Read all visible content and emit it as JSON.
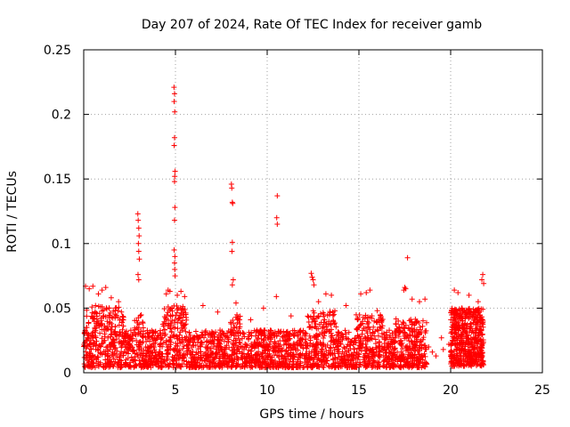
{
  "chart_data": {
    "type": "scatter",
    "title": "Day 207 of 2024, Rate Of TEC Index for receiver gamb",
    "xlabel": "GPS time / hours",
    "ylabel": "ROTI / TECUs",
    "xlim": [
      0,
      25
    ],
    "ylim": [
      0,
      0.25
    ],
    "x_ticks": [
      0,
      5,
      10,
      15,
      20,
      25
    ],
    "y_ticks": [
      0,
      0.05,
      0.1,
      0.15,
      0.2,
      0.25
    ],
    "x_tick_labels": [
      "0",
      "5",
      "10",
      "15",
      "20",
      "25"
    ],
    "y_tick_labels": [
      "0",
      "0.05",
      "0.1",
      "0.15",
      "0.2",
      "0.25"
    ],
    "grid": true,
    "marker": "+",
    "color": "#ff0000",
    "series": [
      {
        "note": "dense point cloud over hours 0-18.7, gap, 20-21.8",
        "points": [
          [
            2.95,
            0.123
          ],
          [
            2.97,
            0.118
          ],
          [
            3.0,
            0.112
          ],
          [
            3.02,
            0.106
          ],
          [
            2.98,
            0.1
          ],
          [
            3.0,
            0.094
          ],
          [
            3.03,
            0.088
          ],
          [
            2.96,
            0.076
          ],
          [
            3.0,
            0.072
          ],
          [
            4.92,
            0.221
          ],
          [
            4.95,
            0.216
          ],
          [
            4.93,
            0.21
          ],
          [
            4.96,
            0.202
          ],
          [
            4.95,
            0.182
          ],
          [
            4.93,
            0.176
          ],
          [
            4.98,
            0.156
          ],
          [
            4.96,
            0.152
          ],
          [
            4.95,
            0.148
          ],
          [
            4.97,
            0.128
          ],
          [
            4.95,
            0.118
          ],
          [
            4.93,
            0.095
          ],
          [
            4.97,
            0.09
          ],
          [
            4.95,
            0.085
          ],
          [
            4.96,
            0.08
          ],
          [
            4.98,
            0.075
          ],
          [
            8.05,
            0.146
          ],
          [
            8.07,
            0.143
          ],
          [
            8.1,
            0.132
          ],
          [
            8.12,
            0.131
          ],
          [
            8.1,
            0.101
          ],
          [
            8.08,
            0.094
          ],
          [
            8.15,
            0.072
          ],
          [
            8.1,
            0.068
          ],
          [
            10.55,
            0.137
          ],
          [
            10.52,
            0.12
          ],
          [
            10.55,
            0.115
          ],
          [
            10.5,
            0.059
          ],
          [
            17.65,
            0.089
          ],
          [
            17.5,
            0.066
          ],
          [
            17.45,
            0.064
          ],
          [
            17.55,
            0.065
          ],
          [
            12.4,
            0.077
          ],
          [
            12.45,
            0.074
          ],
          [
            12.5,
            0.072
          ],
          [
            12.55,
            0.068
          ],
          [
            21.75,
            0.076
          ],
          [
            21.7,
            0.072
          ],
          [
            21.8,
            0.069
          ],
          [
            0.1,
            0.067
          ],
          [
            0.3,
            0.065
          ],
          [
            0.5,
            0.067
          ],
          [
            0.8,
            0.061
          ],
          [
            1.0,
            0.064
          ],
          [
            1.2,
            0.066
          ],
          [
            1.5,
            0.058
          ],
          [
            1.9,
            0.055
          ],
          [
            4.5,
            0.061
          ],
          [
            4.6,
            0.064
          ],
          [
            4.7,
            0.063
          ],
          [
            5.1,
            0.06
          ],
          [
            5.3,
            0.063
          ],
          [
            5.5,
            0.059
          ],
          [
            6.5,
            0.052
          ],
          [
            7.3,
            0.047
          ],
          [
            8.3,
            0.054
          ],
          [
            9.1,
            0.041
          ],
          [
            9.8,
            0.05
          ],
          [
            11.3,
            0.044
          ],
          [
            12.8,
            0.055
          ],
          [
            13.2,
            0.061
          ],
          [
            13.5,
            0.06
          ],
          [
            14.3,
            0.052
          ],
          [
            15.1,
            0.061
          ],
          [
            15.4,
            0.062
          ],
          [
            15.6,
            0.064
          ],
          [
            16.0,
            0.048
          ],
          [
            17.9,
            0.057
          ],
          [
            18.3,
            0.055
          ],
          [
            18.6,
            0.057
          ],
          [
            20.2,
            0.064
          ],
          [
            20.4,
            0.062
          ],
          [
            20.6,
            0.05
          ],
          [
            21.0,
            0.06
          ],
          [
            21.5,
            0.055
          ],
          [
            18.8,
            0.02
          ],
          [
            19.0,
            0.016
          ],
          [
            19.2,
            0.013
          ],
          [
            19.5,
            0.027
          ],
          [
            19.6,
            0.018
          ],
          [
            19.9,
            0.022
          ]
        ]
      }
    ]
  }
}
